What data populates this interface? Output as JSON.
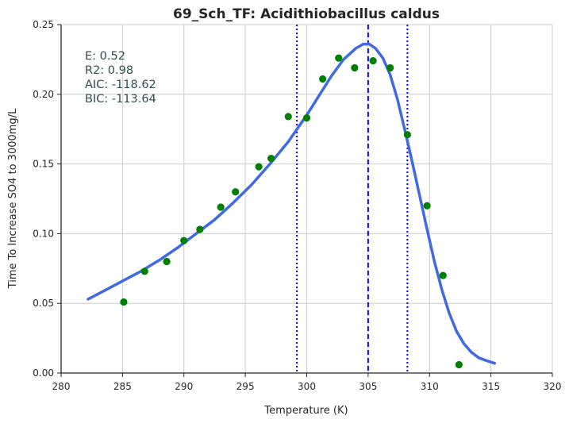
{
  "chart_data": {
    "type": "scatter",
    "title": "69_Sch_TF: Acidithiobacillus caldus",
    "xlabel": "Temperature (K)",
    "ylabel": "Time To Increase SO4 to 3000mg/L",
    "xlim": [
      280,
      320
    ],
    "ylim": [
      0,
      0.25
    ],
    "x_ticks": [
      "280",
      "285",
      "290",
      "295",
      "300",
      "305",
      "310",
      "315",
      "320"
    ],
    "y_ticks": [
      "0.00",
      "0.05",
      "0.10",
      "0.15",
      "0.20",
      "0.25"
    ],
    "grid": true,
    "stats": [
      "E:  0.52",
      "R2:  0.98",
      "AIC: -118.62",
      "BIC: -113.64"
    ],
    "colors": {
      "points": "#007f00",
      "fit": "#4169e1",
      "peak_line": "#0000ff",
      "bound_lines": "#0000ff",
      "grid": "#cccccc",
      "axis": "#262626",
      "stats_text": "#2f4f4f"
    },
    "series": [
      {
        "kind": "points",
        "x": [
          285.1,
          286.8,
          288.6,
          290.0,
          291.3,
          293.0,
          294.2,
          296.1,
          297.1,
          298.5,
          300.0,
          301.3,
          302.6,
          303.9,
          305.4,
          306.8,
          308.2,
          309.8,
          311.1,
          312.4
        ],
        "y": [
          0.051,
          0.073,
          0.08,
          0.095,
          0.103,
          0.119,
          0.13,
          0.148,
          0.154,
          0.184,
          0.183,
          0.211,
          0.226,
          0.219,
          0.224,
          0.219,
          0.171,
          0.12,
          0.07,
          0.006
        ]
      },
      {
        "kind": "fit",
        "x": [
          282.2,
          283.5,
          285.0,
          286.5,
          288.0,
          289.5,
          291.0,
          292.5,
          294.0,
          295.5,
          297.0,
          298.5,
          300.0,
          301.0,
          302.0,
          303.0,
          304.0,
          304.6,
          305.1,
          305.6,
          306.2,
          306.8,
          307.4,
          308.0,
          308.6,
          309.2,
          309.8,
          310.4,
          311.0,
          311.6,
          312.2,
          312.8,
          313.4,
          314.0,
          314.6,
          315.3
        ],
        "y": [
          0.053,
          0.059,
          0.066,
          0.073,
          0.081,
          0.09,
          0.1,
          0.11,
          0.122,
          0.135,
          0.15,
          0.166,
          0.185,
          0.199,
          0.213,
          0.225,
          0.233,
          0.236,
          0.236,
          0.233,
          0.226,
          0.214,
          0.196,
          0.174,
          0.151,
          0.127,
          0.103,
          0.08,
          0.06,
          0.043,
          0.03,
          0.021,
          0.015,
          0.011,
          0.009,
          0.007
        ]
      }
    ],
    "vertical_lines": [
      {
        "x": 299.2,
        "style": "dotted"
      },
      {
        "x": 305.0,
        "style": "dashed"
      },
      {
        "x": 308.2,
        "style": "dotted"
      }
    ]
  }
}
